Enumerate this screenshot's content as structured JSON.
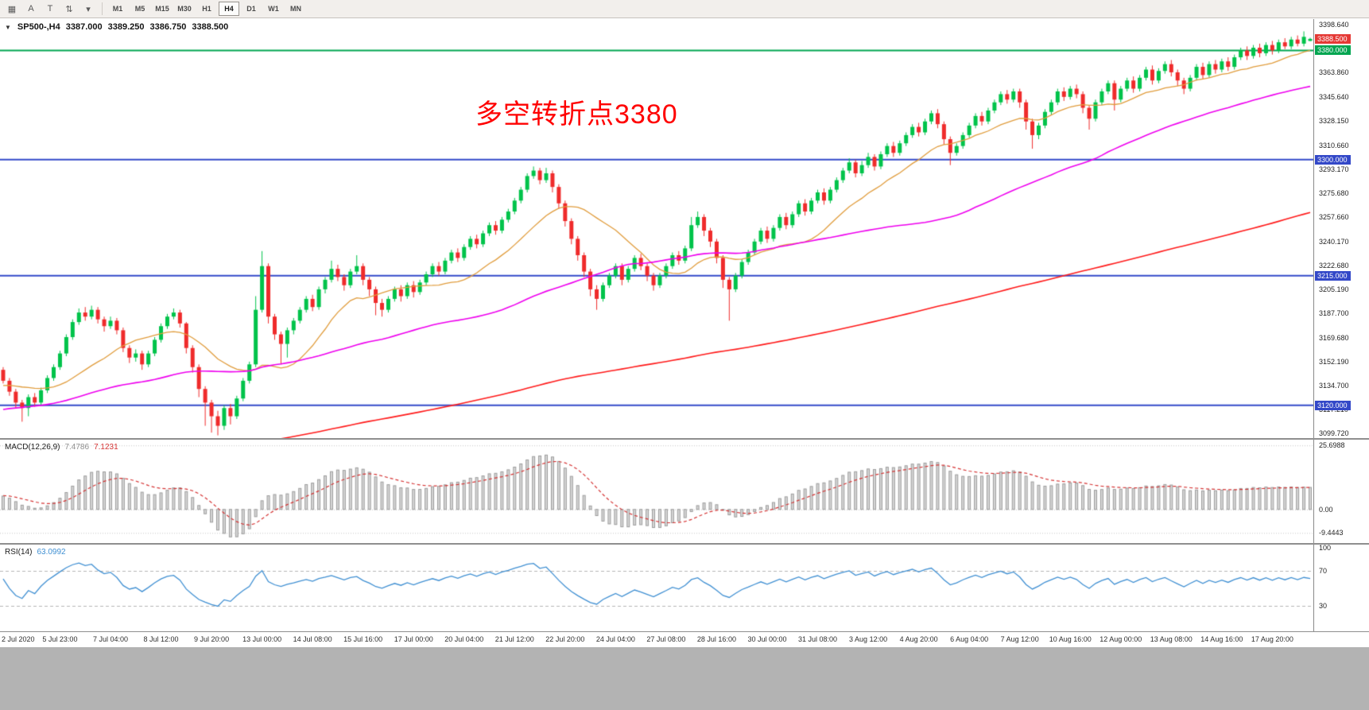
{
  "toolbar": {
    "icons": [
      {
        "name": "chart-window-icon",
        "glyph": "▦"
      },
      {
        "name": "letter-a-icon",
        "glyph": "A"
      },
      {
        "name": "letter-t-icon",
        "glyph": "T"
      },
      {
        "name": "scale-updown-icon",
        "glyph": "⇅"
      },
      {
        "name": "dropdown-arrow-icon",
        "glyph": "▾"
      }
    ],
    "timeframes": [
      "M1",
      "M5",
      "M15",
      "M30",
      "H1",
      "H4",
      "D1",
      "W1",
      "MN"
    ],
    "active_timeframe": "H4"
  },
  "chart": {
    "title": {
      "symbol": "SP500-,H4",
      "open": "3387.000",
      "high": "3389.250",
      "low": "3386.750",
      "close": "3388.500"
    },
    "menu_arrow_glyph": "▼",
    "annotation": {
      "text": "多空转折点3380",
      "color": "#ff0000"
    },
    "current_price": {
      "value": 3388.5,
      "label": "3388.500",
      "color": "#e53935"
    },
    "hlines": [
      {
        "price": 3380,
        "label": "3380.000",
        "color": "#00a550"
      },
      {
        "price": 3300,
        "label": "3300.000",
        "color": "#3348c8"
      },
      {
        "price": 3215,
        "label": "3215.000",
        "color": "#3348c8"
      },
      {
        "price": 3120,
        "label": "3120.000",
        "color": "#3348c8"
      }
    ]
  },
  "macd": {
    "name": "MACD(12,26,9)",
    "value_main": "7.4786",
    "value_signal": "7.1231",
    "main_color": "#d6d6d6",
    "signal_color": "#d53434",
    "y_range": [
      -13.5,
      28
    ],
    "scale": [
      {
        "value": 25.6988,
        "text": "25.6988"
      },
      {
        "value": 0,
        "text": "0.00"
      },
      {
        "value": -9.4443,
        "text": "-9.4443"
      }
    ]
  },
  "rsi": {
    "name": "RSI(14)",
    "value": "63.0992",
    "color": "#3f8fd2",
    "levels": [
      70,
      30
    ],
    "scale": [
      {
        "value": 100,
        "text": "100"
      },
      {
        "value": 70,
        "text": "70"
      },
      {
        "value": 30,
        "text": "30"
      }
    ]
  },
  "chart_data": {
    "type": "candlestick",
    "symbol": "SP500-",
    "timeframe": "H4",
    "title": "SP500-,H4 3387.000 3389.250 3386.750 3388.500",
    "y_range": [
      3096,
      3403
    ],
    "colors": {
      "up": "#00c34a",
      "down": "#ef2b2b"
    },
    "ma": {
      "fast_period": 16,
      "fast_color": "#e09c3c",
      "mid_period": 60,
      "mid_color": "#ee00ee",
      "slow_period": 200,
      "slow_color": "#ff1a1a"
    },
    "prehistory": {
      "bars": 200,
      "from": 2980,
      "to": 3140,
      "zigzag": 1.5
    },
    "y_ticks": [
      {
        "value": 3398.64,
        "text": "3398.640"
      },
      {
        "value": 3363.86,
        "text": "3363.860"
      },
      {
        "value": 3345.64,
        "text": "3345.640"
      },
      {
        "value": 3328.15,
        "text": "3328.150"
      },
      {
        "value": 3310.66,
        "text": "3310.660"
      },
      {
        "value": 3293.17,
        "text": "3293.170"
      },
      {
        "value": 3275.68,
        "text": "3275.680"
      },
      {
        "value": 3257.66,
        "text": "3257.660"
      },
      {
        "value": 3240.17,
        "text": "3240.170"
      },
      {
        "value": 3222.68,
        "text": "3222.680"
      },
      {
        "value": 3205.19,
        "text": "3205.190"
      },
      {
        "value": 3187.7,
        "text": "3187.700"
      },
      {
        "value": 3169.68,
        "text": "3169.680"
      },
      {
        "value": 3152.19,
        "text": "3152.190"
      },
      {
        "value": 3134.7,
        "text": "3134.700"
      },
      {
        "value": 3117.21,
        "text": "3117.210"
      },
      {
        "value": 3099.72,
        "text": "3099.720"
      }
    ],
    "x_labels": [
      "2 Jul 2020",
      "5 Jul 23:00",
      "7 Jul 04:00",
      "8 Jul 12:00",
      "9 Jul 20:00",
      "13 Jul 00:00",
      "14 Jul 08:00",
      "15 Jul 16:00",
      "17 Jul 00:00",
      "20 Jul 04:00",
      "21 Jul 12:00",
      "22 Jul 20:00",
      "24 Jul 04:00",
      "27 Jul 08:00",
      "28 Jul 16:00",
      "30 Jul 00:00",
      "31 Jul 08:00",
      "3 Aug 12:00",
      "4 Aug 20:00",
      "6 Aug 04:00",
      "7 Aug 12:00",
      "10 Aug 16:00",
      "12 Aug 00:00",
      "13 Aug 08:00",
      "14 Aug 16:00",
      "17 Aug 20:00"
    ],
    "candles": [
      [
        3146,
        3148,
        3136,
        3138
      ],
      [
        3138,
        3140,
        3127,
        3130
      ],
      [
        3130,
        3132,
        3118,
        3122
      ],
      [
        3122,
        3124,
        3108,
        3118
      ],
      [
        3118,
        3128,
        3112,
        3126
      ],
      [
        3126,
        3129,
        3119,
        3122
      ],
      [
        3122,
        3133,
        3120,
        3131
      ],
      [
        3131,
        3142,
        3129,
        3140
      ],
      [
        3140,
        3150,
        3138,
        3148
      ],
      [
        3148,
        3160,
        3146,
        3158
      ],
      [
        3158,
        3172,
        3156,
        3170
      ],
      [
        3170,
        3183,
        3168,
        3181
      ],
      [
        3181,
        3191,
        3179,
        3188
      ],
      [
        3188,
        3192,
        3182,
        3185
      ],
      [
        3185,
        3193,
        3183,
        3190
      ],
      [
        3190,
        3192,
        3180,
        3183
      ],
      [
        3183,
        3185,
        3174,
        3178
      ],
      [
        3178,
        3185,
        3176,
        3182
      ],
      [
        3182,
        3184,
        3172,
        3175
      ],
      [
        3175,
        3177,
        3159,
        3162
      ],
      [
        3162,
        3164,
        3151,
        3155
      ],
      [
        3155,
        3161,
        3152,
        3158
      ],
      [
        3158,
        3160,
        3146,
        3150
      ],
      [
        3150,
        3160,
        3148,
        3158
      ],
      [
        3158,
        3170,
        3156,
        3168
      ],
      [
        3168,
        3180,
        3166,
        3178
      ],
      [
        3178,
        3187,
        3176,
        3185
      ],
      [
        3185,
        3191,
        3183,
        3188
      ],
      [
        3188,
        3190,
        3177,
        3180
      ],
      [
        3180,
        3181,
        3158,
        3162
      ],
      [
        3162,
        3164,
        3144,
        3148
      ],
      [
        3148,
        3150,
        3126,
        3132
      ],
      [
        3132,
        3134,
        3105,
        3122
      ],
      [
        3122,
        3124,
        3100,
        3112
      ],
      [
        3112,
        3116,
        3098,
        3105
      ],
      [
        3105,
        3120,
        3102,
        3118
      ],
      [
        3118,
        3121,
        3106,
        3112
      ],
      [
        3112,
        3127,
        3110,
        3125
      ],
      [
        3125,
        3140,
        3123,
        3138
      ],
      [
        3138,
        3152,
        3136,
        3150
      ],
      [
        3150,
        3200,
        3148,
        3190
      ],
      [
        3190,
        3233,
        3188,
        3222
      ],
      [
        3222,
        3224,
        3180,
        3185
      ],
      [
        3185,
        3187,
        3168,
        3172
      ],
      [
        3172,
        3174,
        3150,
        3165
      ],
      [
        3165,
        3177,
        3155,
        3175
      ],
      [
        3175,
        3184,
        3172,
        3182
      ],
      [
        3182,
        3192,
        3180,
        3190
      ],
      [
        3190,
        3200,
        3188,
        3198
      ],
      [
        3198,
        3201,
        3189,
        3192
      ],
      [
        3192,
        3207,
        3190,
        3205
      ],
      [
        3205,
        3214,
        3202,
        3212
      ],
      [
        3212,
        3226,
        3210,
        3220
      ],
      [
        3220,
        3223,
        3211,
        3214
      ],
      [
        3214,
        3216,
        3204,
        3208
      ],
      [
        3208,
        3220,
        3206,
        3218
      ],
      [
        3218,
        3230,
        3216,
        3222
      ],
      [
        3222,
        3224,
        3208,
        3212
      ],
      [
        3212,
        3214,
        3200,
        3205
      ],
      [
        3205,
        3207,
        3186,
        3195
      ],
      [
        3195,
        3198,
        3185,
        3190
      ],
      [
        3190,
        3200,
        3188,
        3198
      ],
      [
        3198,
        3207,
        3196,
        3205
      ],
      [
        3205,
        3208,
        3196,
        3200
      ],
      [
        3200,
        3210,
        3198,
        3208
      ],
      [
        3208,
        3211,
        3199,
        3203
      ],
      [
        3203,
        3212,
        3201,
        3210
      ],
      [
        3210,
        3218,
        3208,
        3216
      ],
      [
        3216,
        3224,
        3214,
        3222
      ],
      [
        3222,
        3225,
        3215,
        3218
      ],
      [
        3218,
        3228,
        3216,
        3226
      ],
      [
        3226,
        3234,
        3224,
        3232
      ],
      [
        3232,
        3235,
        3225,
        3228
      ],
      [
        3228,
        3238,
        3226,
        3236
      ],
      [
        3236,
        3244,
        3234,
        3242
      ],
      [
        3242,
        3245,
        3235,
        3238
      ],
      [
        3238,
        3248,
        3236,
        3246
      ],
      [
        3246,
        3254,
        3244,
        3252
      ],
      [
        3252,
        3255,
        3245,
        3248
      ],
      [
        3248,
        3258,
        3246,
        3256
      ],
      [
        3256,
        3264,
        3254,
        3262
      ],
      [
        3262,
        3272,
        3260,
        3270
      ],
      [
        3270,
        3280,
        3268,
        3278
      ],
      [
        3278,
        3290,
        3276,
        3288
      ],
      [
        3288,
        3295,
        3286,
        3292
      ],
      [
        3292,
        3294,
        3282,
        3285
      ],
      [
        3285,
        3294,
        3283,
        3290
      ],
      [
        3290,
        3292,
        3276,
        3280
      ],
      [
        3280,
        3282,
        3264,
        3268
      ],
      [
        3268,
        3270,
        3251,
        3255
      ],
      [
        3255,
        3257,
        3238,
        3242
      ],
      [
        3242,
        3244,
        3226,
        3230
      ],
      [
        3230,
        3232,
        3214,
        3218
      ],
      [
        3218,
        3220,
        3200,
        3205
      ],
      [
        3205,
        3208,
        3190,
        3198
      ],
      [
        3198,
        3210,
        3196,
        3208
      ],
      [
        3208,
        3217,
        3206,
        3215
      ],
      [
        3215,
        3224,
        3213,
        3222
      ],
      [
        3222,
        3224,
        3208,
        3212
      ],
      [
        3212,
        3222,
        3210,
        3220
      ],
      [
        3220,
        3230,
        3218,
        3228
      ],
      [
        3228,
        3231,
        3219,
        3222
      ],
      [
        3222,
        3224,
        3211,
        3215
      ],
      [
        3215,
        3217,
        3204,
        3208
      ],
      [
        3208,
        3217,
        3206,
        3215
      ],
      [
        3215,
        3224,
        3213,
        3222
      ],
      [
        3222,
        3232,
        3220,
        3230
      ],
      [
        3230,
        3233,
        3223,
        3226
      ],
      [
        3226,
        3237,
        3224,
        3235
      ],
      [
        3235,
        3258,
        3233,
        3252
      ],
      [
        3252,
        3262,
        3250,
        3258
      ],
      [
        3258,
        3260,
        3244,
        3248
      ],
      [
        3248,
        3250,
        3236,
        3240
      ],
      [
        3240,
        3242,
        3224,
        3228
      ],
      [
        3228,
        3230,
        3206,
        3212
      ],
      [
        3212,
        3214,
        3182,
        3205
      ],
      [
        3205,
        3217,
        3203,
        3215
      ],
      [
        3215,
        3227,
        3213,
        3225
      ],
      [
        3225,
        3234,
        3223,
        3232
      ],
      [
        3232,
        3242,
        3230,
        3240
      ],
      [
        3240,
        3250,
        3238,
        3248
      ],
      [
        3248,
        3251,
        3239,
        3242
      ],
      [
        3242,
        3252,
        3240,
        3250
      ],
      [
        3250,
        3260,
        3248,
        3258
      ],
      [
        3258,
        3261,
        3249,
        3252
      ],
      [
        3252,
        3262,
        3250,
        3260
      ],
      [
        3260,
        3270,
        3258,
        3268
      ],
      [
        3268,
        3271,
        3259,
        3262
      ],
      [
        3262,
        3272,
        3260,
        3270
      ],
      [
        3270,
        3278,
        3268,
        3276
      ],
      [
        3276,
        3279,
        3267,
        3270
      ],
      [
        3270,
        3280,
        3268,
        3278
      ],
      [
        3278,
        3287,
        3276,
        3285
      ],
      [
        3285,
        3294,
        3283,
        3292
      ],
      [
        3292,
        3301,
        3290,
        3298
      ],
      [
        3298,
        3300,
        3287,
        3290
      ],
      [
        3290,
        3299,
        3288,
        3296
      ],
      [
        3296,
        3305,
        3294,
        3302
      ],
      [
        3302,
        3304,
        3292,
        3295
      ],
      [
        3295,
        3306,
        3293,
        3304
      ],
      [
        3304,
        3312,
        3302,
        3310
      ],
      [
        3310,
        3313,
        3302,
        3305
      ],
      [
        3305,
        3314,
        3303,
        3312
      ],
      [
        3312,
        3320,
        3310,
        3318
      ],
      [
        3318,
        3326,
        3316,
        3324
      ],
      [
        3324,
        3327,
        3317,
        3320
      ],
      [
        3320,
        3330,
        3318,
        3328
      ],
      [
        3328,
        3336,
        3326,
        3334
      ],
      [
        3334,
        3337,
        3323,
        3326
      ],
      [
        3326,
        3328,
        3311,
        3315
      ],
      [
        3315,
        3317,
        3296,
        3305
      ],
      [
        3305,
        3312,
        3303,
        3310
      ],
      [
        3310,
        3320,
        3308,
        3318
      ],
      [
        3318,
        3327,
        3316,
        3325
      ],
      [
        3325,
        3334,
        3323,
        3332
      ],
      [
        3332,
        3335,
        3325,
        3328
      ],
      [
        3328,
        3338,
        3326,
        3336
      ],
      [
        3336,
        3344,
        3334,
        3342
      ],
      [
        3342,
        3350,
        3340,
        3348
      ],
      [
        3348,
        3351,
        3341,
        3344
      ],
      [
        3344,
        3352,
        3342,
        3350
      ],
      [
        3350,
        3352,
        3338,
        3342
      ],
      [
        3342,
        3344,
        3322,
        3328
      ],
      [
        3328,
        3330,
        3308,
        3318
      ],
      [
        3318,
        3327,
        3315,
        3325
      ],
      [
        3325,
        3337,
        3323,
        3335
      ],
      [
        3335,
        3344,
        3333,
        3342
      ],
      [
        3342,
        3352,
        3340,
        3350
      ],
      [
        3350,
        3353,
        3343,
        3346
      ],
      [
        3346,
        3354,
        3344,
        3352
      ],
      [
        3352,
        3355,
        3345,
        3348
      ],
      [
        3348,
        3350,
        3334,
        3338
      ],
      [
        3338,
        3340,
        3322,
        3330
      ],
      [
        3330,
        3344,
        3328,
        3342
      ],
      [
        3342,
        3352,
        3340,
        3350
      ],
      [
        3350,
        3358,
        3348,
        3356
      ],
      [
        3356,
        3358,
        3336,
        3344
      ],
      [
        3344,
        3354,
        3342,
        3352
      ],
      [
        3352,
        3360,
        3350,
        3358
      ],
      [
        3358,
        3361,
        3349,
        3352
      ],
      [
        3352,
        3362,
        3350,
        3360
      ],
      [
        3360,
        3368,
        3358,
        3366
      ],
      [
        3366,
        3369,
        3355,
        3358
      ],
      [
        3358,
        3367,
        3356,
        3365
      ],
      [
        3365,
        3372,
        3363,
        3370
      ],
      [
        3370,
        3373,
        3361,
        3364
      ],
      [
        3364,
        3366,
        3354,
        3358
      ],
      [
        3358,
        3360,
        3348,
        3352
      ],
      [
        3352,
        3362,
        3350,
        3360
      ],
      [
        3360,
        3370,
        3358,
        3368
      ],
      [
        3368,
        3371,
        3359,
        3362
      ],
      [
        3362,
        3372,
        3360,
        3370
      ],
      [
        3370,
        3373,
        3363,
        3366
      ],
      [
        3366,
        3374,
        3364,
        3372
      ],
      [
        3372,
        3375,
        3365,
        3368
      ],
      [
        3368,
        3377,
        3366,
        3375
      ],
      [
        3375,
        3382,
        3373,
        3380
      ],
      [
        3380,
        3383,
        3373,
        3376
      ],
      [
        3376,
        3384,
        3374,
        3382
      ],
      [
        3382,
        3385,
        3375,
        3378
      ],
      [
        3378,
        3386,
        3376,
        3384
      ],
      [
        3384,
        3387,
        3377,
        3380
      ],
      [
        3380,
        3388,
        3378,
        3386
      ],
      [
        3386,
        3389,
        3381,
        3383
      ],
      [
        3383,
        3390,
        3381,
        3388
      ],
      [
        3388,
        3391,
        3383,
        3385
      ],
      [
        3385,
        3394,
        3383,
        3390
      ],
      [
        3387,
        3389.3,
        3386.8,
        3388.5
      ]
    ]
  }
}
